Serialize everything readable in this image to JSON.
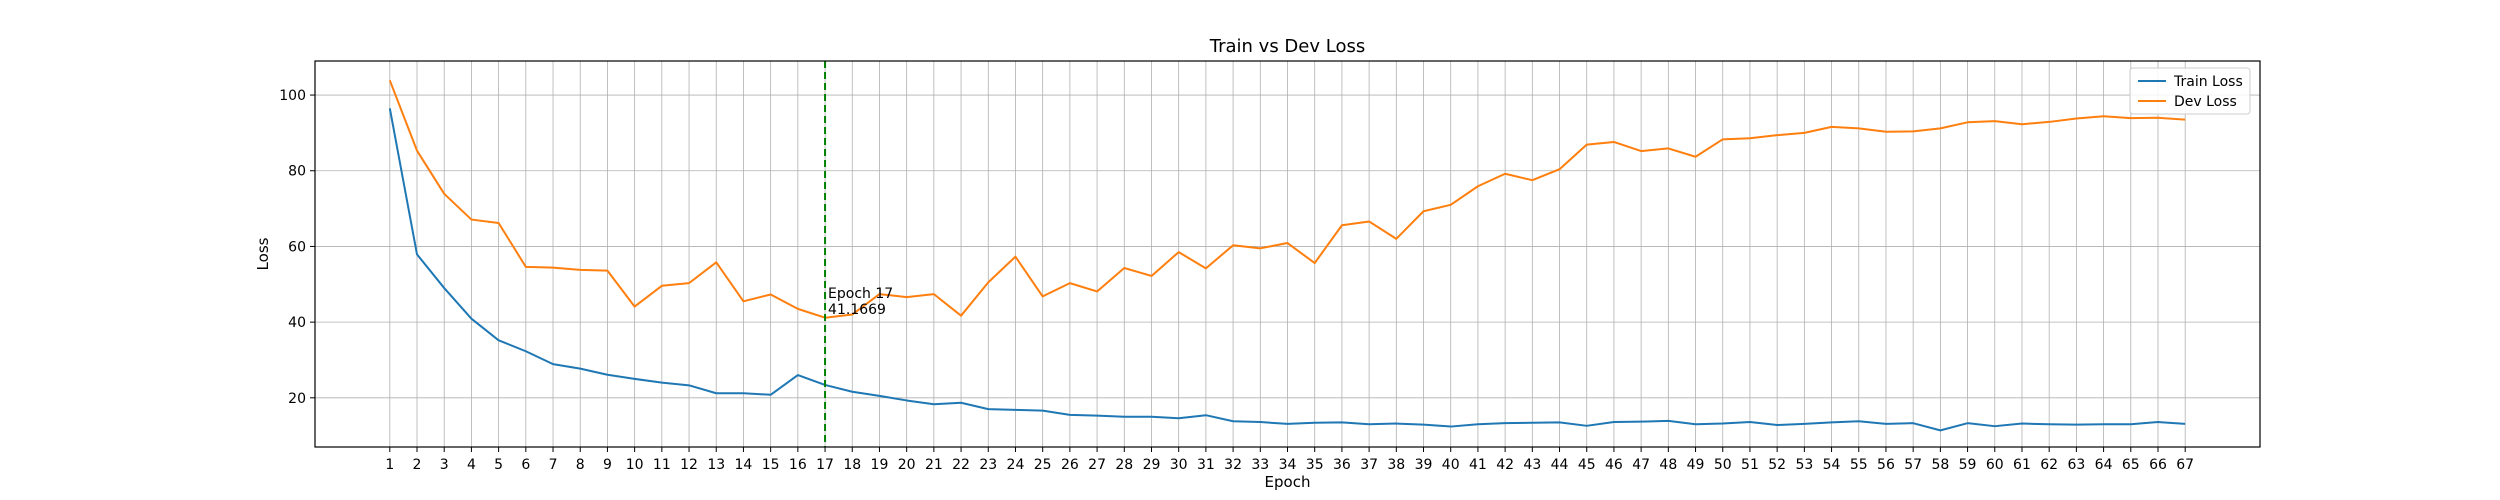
{
  "chart_data": {
    "type": "line",
    "title": "Train vs Dev Loss",
    "xlabel": "Epoch",
    "ylabel": "Loss",
    "x": [
      1,
      2,
      3,
      4,
      5,
      6,
      7,
      8,
      9,
      10,
      11,
      12,
      13,
      14,
      15,
      16,
      17,
      18,
      19,
      20,
      21,
      22,
      23,
      24,
      25,
      26,
      27,
      28,
      29,
      30,
      31,
      32,
      33,
      34,
      35,
      36,
      37,
      38,
      39,
      40,
      41,
      42,
      43,
      44,
      45,
      46,
      47,
      48,
      49,
      50,
      51,
      52,
      53,
      54,
      55,
      56,
      57,
      58,
      59,
      60,
      61,
      62,
      63,
      64,
      65,
      66,
      67
    ],
    "xlim": [
      -1.75,
      69.75
    ],
    "ylim": [
      7,
      109
    ],
    "yticks": [
      20,
      40,
      60,
      80,
      100
    ],
    "grid": true,
    "legend_position": "top-right",
    "series": [
      {
        "name": "Train Loss",
        "color": "#1f77b4",
        "values": [
          96.5,
          57.9,
          49.0,
          40.9,
          35.2,
          32.3,
          28.9,
          27.7,
          26.1,
          25.0,
          24.0,
          23.3,
          21.2,
          21.2,
          20.8,
          26.0,
          23.4,
          21.6,
          20.5,
          19.3,
          18.3,
          18.7,
          17.0,
          16.8,
          16.6,
          15.5,
          15.3,
          15.0,
          15.0,
          14.6,
          15.4,
          13.8,
          13.6,
          13.1,
          13.4,
          13.5,
          13.0,
          13.2,
          12.9,
          12.4,
          13.0,
          13.3,
          13.4,
          13.5,
          12.6,
          13.6,
          13.7,
          13.9,
          13.0,
          13.2,
          13.6,
          12.8,
          13.1,
          13.5,
          13.8,
          13.1,
          13.3,
          11.4,
          13.3,
          12.5,
          13.2,
          13.0,
          12.9,
          13.0,
          13.0,
          13.6,
          13.1
        ]
      },
      {
        "name": "Dev Loss",
        "color": "#ff7f0e",
        "values": [
          103.9,
          85.3,
          73.9,
          67.1,
          66.2,
          54.6,
          54.4,
          53.8,
          53.6,
          44.1,
          49.6,
          50.3,
          55.8,
          45.5,
          47.3,
          43.5,
          41.1669,
          42.0,
          47.4,
          46.6,
          47.4,
          41.7,
          50.5,
          57.3,
          46.8,
          50.3,
          48.1,
          54.3,
          52.2,
          58.5,
          54.2,
          60.3,
          59.5,
          60.9,
          55.6,
          65.6,
          66.6,
          62.0,
          69.3,
          71.0,
          75.9,
          79.2,
          77.5,
          80.4,
          86.9,
          87.6,
          85.2,
          85.9,
          83.7,
          88.3,
          88.6,
          89.4,
          90.0,
          91.6,
          91.2,
          90.3,
          90.4,
          91.2,
          92.8,
          93.1,
          92.3,
          92.9,
          93.8,
          94.4,
          93.9,
          94.0,
          93.5
        ]
      }
    ],
    "annotation": {
      "x": 17,
      "line_color": "#008000",
      "line1": "Epoch 17",
      "line2": "41.1669"
    }
  }
}
